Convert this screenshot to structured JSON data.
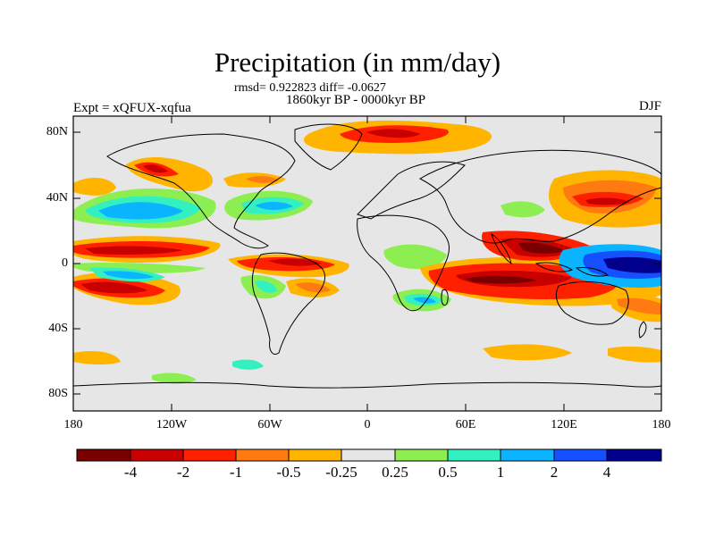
{
  "title": "Precipitation (in mm/day)",
  "rmsd_line": "rmsd= 0.922823 diff= -0.0627",
  "period": "1860kyr BP - 0000kyr BP",
  "experiment": "Expt = xQFUX-xqfua",
  "season": "DJF",
  "chart_data": {
    "type": "heatmap",
    "variable": "Precipitation anomaly",
    "units": "mm/day",
    "lat_range": [
      -90,
      90
    ],
    "lon_range": [
      -180,
      180
    ],
    "lat_ticks": [
      "80N",
      "40N",
      "0",
      "40S",
      "80S"
    ],
    "lon_ticks": [
      "180",
      "120W",
      "60W",
      "0",
      "60E",
      "120E",
      "180"
    ],
    "colorbar": {
      "colors": [
        "#7a0000",
        "#c80000",
        "#ff2000",
        "#ff7a10",
        "#ffb400",
        "#e6e6e6",
        "#8cee50",
        "#32f0c0",
        "#0ab4ff",
        "#1450ff",
        "#00008c"
      ],
      "labels": [
        "-4",
        "-2",
        "-1",
        "-0.5",
        "-0.25",
        "0.25",
        "0.5",
        "1",
        "2",
        "4"
      ]
    }
  }
}
